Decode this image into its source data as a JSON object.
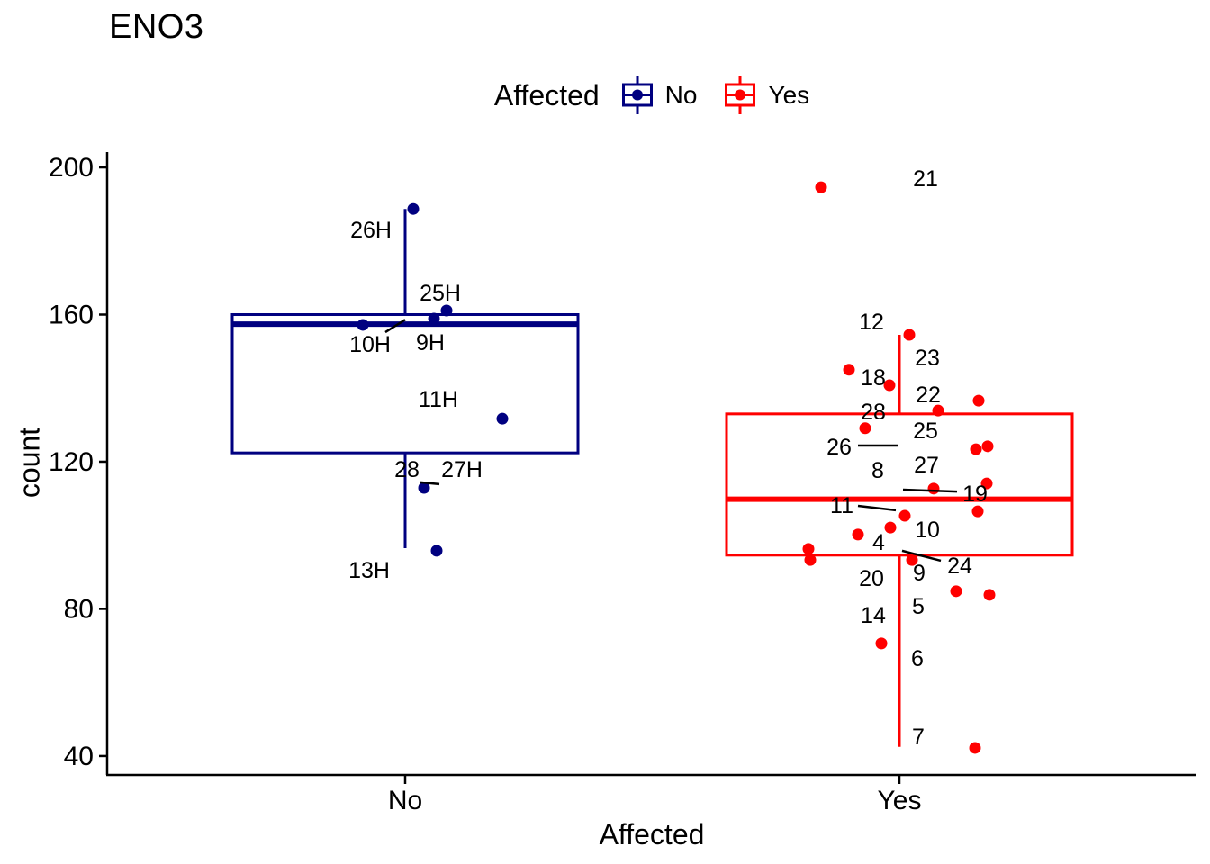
{
  "chart_data": {
    "type": "boxplot",
    "title": "ENO3",
    "xlabel": "Affected",
    "ylabel": "count",
    "ylim": [
      34.6,
      204.9
    ],
    "yticks": [
      40,
      80,
      120,
      160,
      200
    ],
    "x_categories": [
      "No",
      "Yes"
    ],
    "grid": false,
    "background": "#ffffff",
    "legend": {
      "title": "Affected",
      "position": "top",
      "entries": [
        {
          "label": "No",
          "color": "#000080"
        },
        {
          "label": "Yes",
          "color": "#FF0000"
        }
      ]
    },
    "groups": [
      {
        "name": "No",
        "color": "#000080",
        "box": {
          "q1": 122.4,
          "median": 157.4,
          "q3": 160.0,
          "whisker_low": 96.5,
          "whisker_high": 188.7
        },
        "points": [
          {
            "dx": 9,
            "count": 188.7
          },
          {
            "dx": 46,
            "count": 161.1
          },
          {
            "dx": 32,
            "count": 158.9
          },
          {
            "dx": -47,
            "count": 157.2
          },
          {
            "dx": 108,
            "count": 131.7
          },
          {
            "dx": 21,
            "count": 112.9
          },
          {
            "dx": 35,
            "count": 95.8
          }
        ],
        "point_labels": [
          {
            "text": "26H",
            "dx": -38,
            "count": 183.1
          },
          {
            "text": "25H",
            "dx": 39,
            "count": 166.0
          },
          {
            "text": "10H",
            "dx": -39,
            "count": 152.0
          },
          {
            "text": "9H",
            "dx": 28,
            "count": 152.5
          },
          {
            "text": "11H",
            "dx": 37,
            "count": 137.1
          },
          {
            "text": "28",
            "dx": 2,
            "count": 118.0
          },
          {
            "text": "27H",
            "dx": 63,
            "count": 118.0
          },
          {
            "text": "13H",
            "dx": -40,
            "count": 90.6
          }
        ],
        "leader_lines": [
          {
            "dx1": -22,
            "c1": 155.2,
            "dx2": 0,
            "c2": 158.6
          },
          {
            "dx1": 17,
            "c1": 114.4,
            "dx2": 38,
            "c2": 113.9
          }
        ]
      },
      {
        "name": "Yes",
        "color": "#FF0000",
        "box": {
          "q1": 94.6,
          "median": 109.8,
          "q3": 133.0,
          "whisker_low": 42.5,
          "whisker_high": 154.5
        },
        "points": [
          {
            "dx": -87,
            "count": 194.6
          },
          {
            "dx": 11,
            "count": 154.5
          },
          {
            "dx": -56,
            "count": 145.0
          },
          {
            "dx": -11,
            "count": 140.8
          },
          {
            "dx": 43,
            "count": 133.9
          },
          {
            "dx": 88,
            "count": 136.6
          },
          {
            "dx": -38,
            "count": 129.1
          },
          {
            "dx": 85,
            "count": 123.4
          },
          {
            "dx": 98,
            "count": 124.2
          },
          {
            "dx": 97,
            "count": 114.1
          },
          {
            "dx": 38,
            "count": 112.7
          },
          {
            "dx": 87,
            "count": 106.5
          },
          {
            "dx": 6,
            "count": 105.3
          },
          {
            "dx": -10,
            "count": 102.1
          },
          {
            "dx": -46,
            "count": 100.2
          },
          {
            "dx": -101,
            "count": 96.3
          },
          {
            "dx": -99,
            "count": 93.3
          },
          {
            "dx": 14,
            "count": 93.3
          },
          {
            "dx": 63,
            "count": 84.8
          },
          {
            "dx": 100,
            "count": 83.8
          },
          {
            "dx": -20,
            "count": 70.6
          },
          {
            "dx": 84,
            "count": 42.2
          }
        ],
        "point_labels": [
          {
            "text": "21",
            "dx": 29,
            "count": 197.1
          },
          {
            "text": "12",
            "dx": -31,
            "count": 158.2
          },
          {
            "text": "23",
            "dx": 31,
            "count": 148.4
          },
          {
            "text": "18",
            "dx": -29,
            "count": 143.0
          },
          {
            "text": "22",
            "dx": 32,
            "count": 138.3
          },
          {
            "text": "28",
            "dx": -29,
            "count": 133.7
          },
          {
            "text": "25",
            "dx": 29,
            "count": 128.6
          },
          {
            "text": "26",
            "dx": -67,
            "count": 124.2
          },
          {
            "text": "8",
            "dx": -24,
            "count": 117.8
          },
          {
            "text": "27",
            "dx": 30,
            "count": 119.3
          },
          {
            "text": "19",
            "dx": 84,
            "count": 111.4
          },
          {
            "text": "11",
            "dx": -64,
            "count": 108.3
          },
          {
            "text": "10",
            "dx": 31,
            "count": 101.7
          },
          {
            "text": "4",
            "dx": -23,
            "count": 98.2
          },
          {
            "text": "24",
            "dx": 67,
            "count": 91.9
          },
          {
            "text": "9",
            "dx": 22,
            "count": 89.9
          },
          {
            "text": "20",
            "dx": -31,
            "count": 88.4
          },
          {
            "text": "5",
            "dx": 21,
            "count": 80.9
          },
          {
            "text": "14",
            "dx": -29,
            "count": 78.4
          },
          {
            "text": "6",
            "dx": 20,
            "count": 66.7
          },
          {
            "text": "7",
            "dx": 21,
            "count": 45.4
          }
        ],
        "leader_lines": [
          {
            "dx1": -46,
            "c1": 124.4,
            "dx2": -1,
            "c2": 124.4
          },
          {
            "dx1": 4,
            "c1": 112.4,
            "dx2": 64,
            "c2": 111.9
          },
          {
            "dx1": -46,
            "c1": 108.0,
            "dx2": -4,
            "c2": 106.8
          },
          {
            "dx1": 3,
            "c1": 95.8,
            "dx2": 46,
            "c2": 93.1
          }
        ]
      }
    ]
  }
}
